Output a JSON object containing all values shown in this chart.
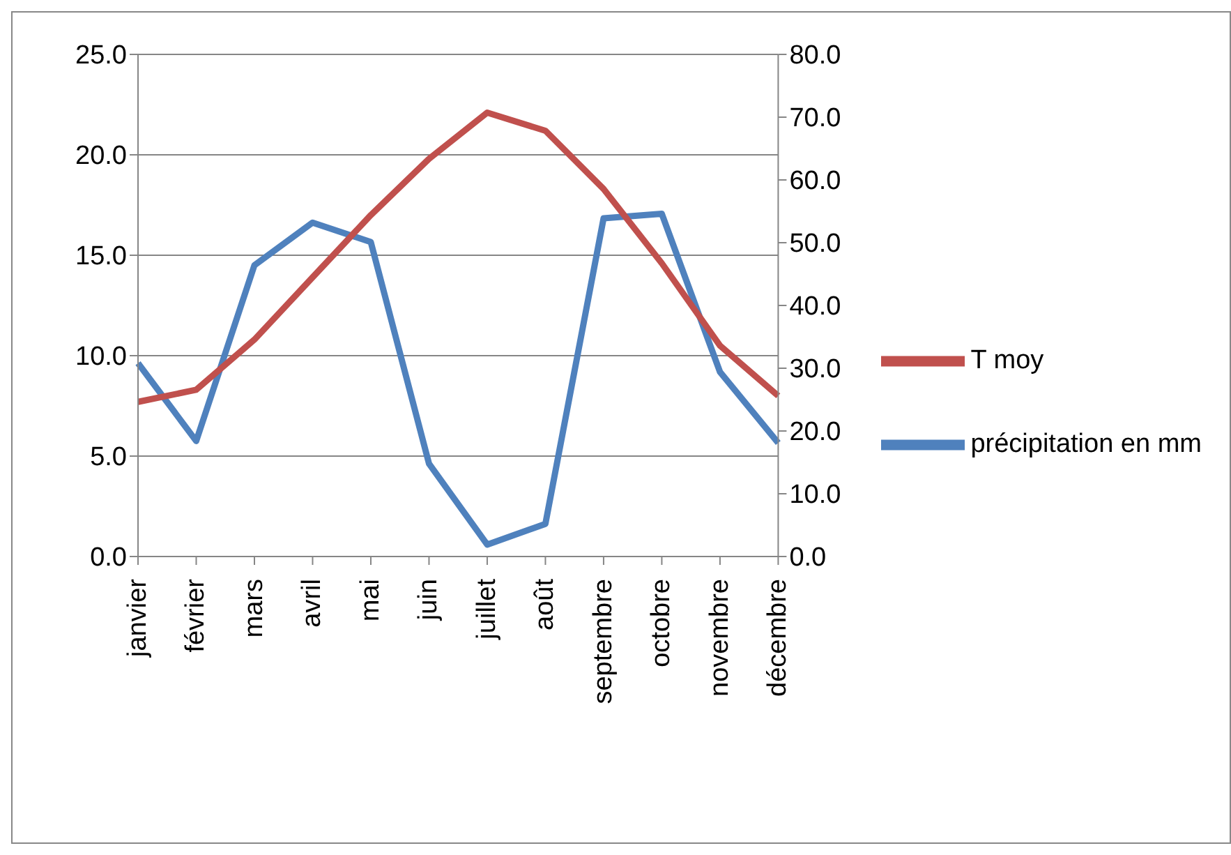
{
  "chart_data": {
    "type": "line",
    "categories": [
      "janvier",
      "février",
      "mars",
      "avril",
      "mai",
      "juin",
      "juillet",
      "août",
      "septembre",
      "octobre",
      "novembre",
      "décembre"
    ],
    "series": [
      {
        "name": "précipitation  en mm",
        "color": "#4f81bd",
        "axis": "y2",
        "values": [
          30.8,
          18.4,
          46.4,
          53.2,
          50.1,
          14.8,
          1.9,
          5.2,
          53.9,
          54.6,
          29.4,
          18.1
        ]
      },
      {
        "name": "T moy",
        "color": "#c0504d",
        "values": [
          7.7,
          8.3,
          10.8,
          13.9,
          17.0,
          19.8,
          22.1,
          21.2,
          18.3,
          14.6,
          10.5,
          8.0
        ]
      }
    ],
    "ylim": [
      0,
      25
    ],
    "yticks": [
      {
        "value": 0,
        "label": "0.0"
      },
      {
        "value": 5,
        "label": "5.0"
      },
      {
        "value": 10,
        "label": "10.0"
      },
      {
        "value": 15,
        "label": "15.0"
      },
      {
        "value": 20,
        "label": "20.0"
      },
      {
        "value": 25,
        "label": "25.0"
      }
    ],
    "y2lim": [
      0,
      80
    ],
    "y2ticks": [
      {
        "value": 0,
        "label": "0.0"
      },
      {
        "value": 10,
        "label": "10.0"
      },
      {
        "value": 20,
        "label": "20.0"
      },
      {
        "value": 30,
        "label": "30.0"
      },
      {
        "value": 40,
        "label": "40.0"
      },
      {
        "value": 50,
        "label": "50.0"
      },
      {
        "value": 60,
        "label": "60.0"
      },
      {
        "value": 70,
        "label": "70.0"
      },
      {
        "value": 80,
        "label": "80.0"
      }
    ],
    "grid": "y",
    "legend": "right",
    "marker": "none",
    "line_style": "solid"
  }
}
